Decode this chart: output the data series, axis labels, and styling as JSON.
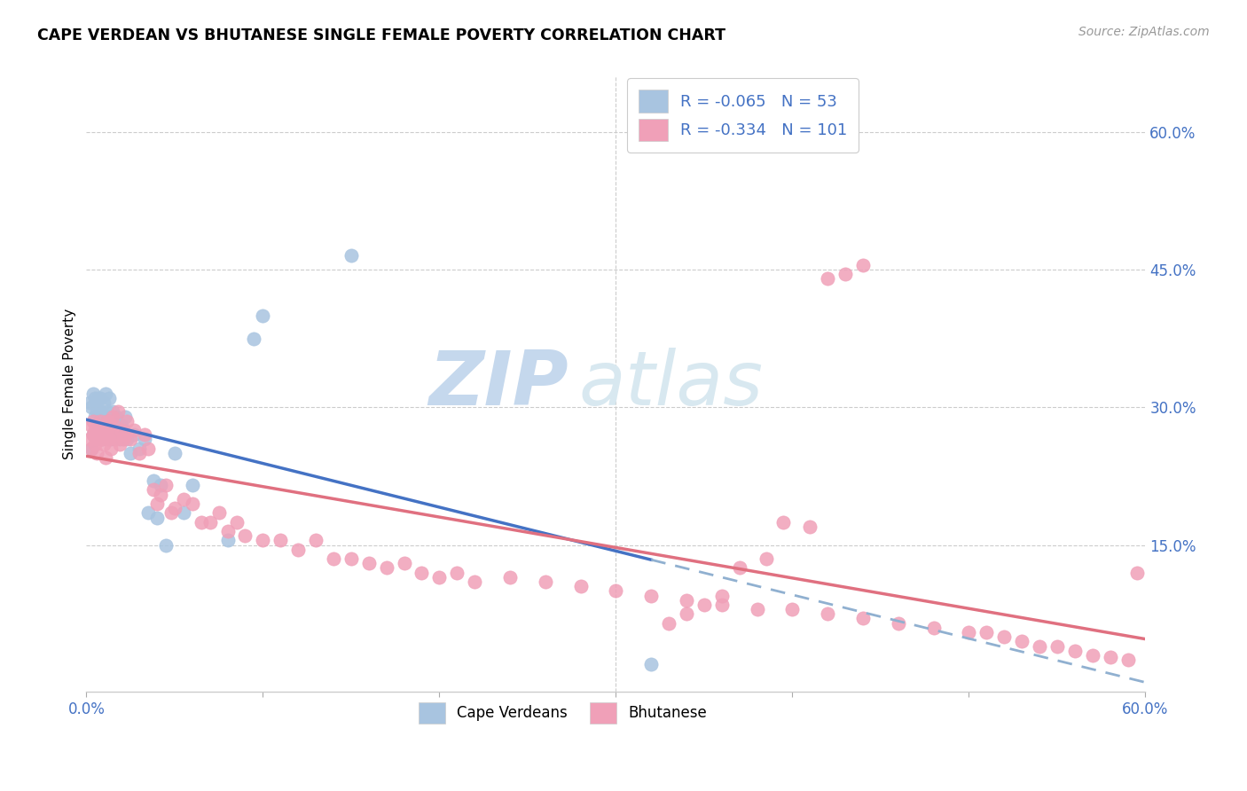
{
  "title": "CAPE VERDEAN VS BHUTANESE SINGLE FEMALE POVERTY CORRELATION CHART",
  "source": "Source: ZipAtlas.com",
  "ylabel": "Single Female Poverty",
  "ytick_labels": [
    "15.0%",
    "30.0%",
    "45.0%",
    "60.0%"
  ],
  "ytick_values": [
    0.15,
    0.3,
    0.45,
    0.6
  ],
  "xlim": [
    0.0,
    0.6
  ],
  "ylim": [
    -0.01,
    0.66
  ],
  "legend_cv": {
    "R": -0.065,
    "N": 53
  },
  "legend_bh": {
    "R": -0.334,
    "N": 101
  },
  "cape_verdean_color": "#a8c4e0",
  "bhutanese_color": "#f0a0b8",
  "trendline_cv_color": "#4472c4",
  "trendline_bh_color": "#e07080",
  "trendline_cv_dashed_color": "#90b0d0",
  "watermark_zip_color": "#c5d8ed",
  "watermark_atlas_color": "#d8e8f0",
  "cv_x": [
    0.002,
    0.003,
    0.003,
    0.004,
    0.004,
    0.005,
    0.005,
    0.005,
    0.006,
    0.006,
    0.007,
    0.007,
    0.008,
    0.008,
    0.008,
    0.009,
    0.009,
    0.01,
    0.01,
    0.011,
    0.011,
    0.012,
    0.012,
    0.013,
    0.013,
    0.014,
    0.015,
    0.015,
    0.016,
    0.017,
    0.018,
    0.019,
    0.02,
    0.021,
    0.022,
    0.023,
    0.025,
    0.027,
    0.03,
    0.033,
    0.035,
    0.038,
    0.04,
    0.042,
    0.045,
    0.05,
    0.055,
    0.06,
    0.08,
    0.095,
    0.1,
    0.15,
    0.32
  ],
  "cv_y": [
    0.305,
    0.3,
    0.255,
    0.315,
    0.27,
    0.29,
    0.31,
    0.27,
    0.295,
    0.305,
    0.285,
    0.31,
    0.275,
    0.31,
    0.295,
    0.285,
    0.265,
    0.305,
    0.285,
    0.29,
    0.315,
    0.27,
    0.295,
    0.285,
    0.31,
    0.265,
    0.295,
    0.28,
    0.285,
    0.29,
    0.275,
    0.265,
    0.28,
    0.275,
    0.29,
    0.265,
    0.25,
    0.27,
    0.255,
    0.265,
    0.185,
    0.22,
    0.18,
    0.215,
    0.15,
    0.25,
    0.185,
    0.215,
    0.155,
    0.375,
    0.4,
    0.465,
    0.02
  ],
  "bh_x": [
    0.002,
    0.003,
    0.003,
    0.004,
    0.004,
    0.005,
    0.005,
    0.006,
    0.006,
    0.007,
    0.007,
    0.008,
    0.008,
    0.009,
    0.009,
    0.01,
    0.01,
    0.011,
    0.011,
    0.012,
    0.012,
    0.013,
    0.013,
    0.014,
    0.015,
    0.015,
    0.016,
    0.017,
    0.018,
    0.019,
    0.02,
    0.021,
    0.022,
    0.023,
    0.025,
    0.027,
    0.03,
    0.033,
    0.035,
    0.038,
    0.04,
    0.042,
    0.045,
    0.048,
    0.05,
    0.055,
    0.06,
    0.065,
    0.07,
    0.075,
    0.08,
    0.085,
    0.09,
    0.1,
    0.11,
    0.12,
    0.13,
    0.14,
    0.15,
    0.16,
    0.17,
    0.18,
    0.19,
    0.2,
    0.21,
    0.22,
    0.24,
    0.26,
    0.28,
    0.3,
    0.32,
    0.34,
    0.36,
    0.38,
    0.4,
    0.42,
    0.44,
    0.46,
    0.48,
    0.5,
    0.51,
    0.52,
    0.53,
    0.54,
    0.55,
    0.56,
    0.57,
    0.58,
    0.59,
    0.595,
    0.42,
    0.43,
    0.44,
    0.41,
    0.395,
    0.385,
    0.37,
    0.36,
    0.35,
    0.34,
    0.33
  ],
  "bh_y": [
    0.265,
    0.255,
    0.28,
    0.27,
    0.285,
    0.26,
    0.275,
    0.265,
    0.25,
    0.275,
    0.28,
    0.265,
    0.285,
    0.275,
    0.265,
    0.26,
    0.28,
    0.275,
    0.245,
    0.285,
    0.27,
    0.265,
    0.285,
    0.255,
    0.27,
    0.29,
    0.28,
    0.265,
    0.295,
    0.26,
    0.275,
    0.265,
    0.27,
    0.285,
    0.265,
    0.275,
    0.25,
    0.27,
    0.255,
    0.21,
    0.195,
    0.205,
    0.215,
    0.185,
    0.19,
    0.2,
    0.195,
    0.175,
    0.175,
    0.185,
    0.165,
    0.175,
    0.16,
    0.155,
    0.155,
    0.145,
    0.155,
    0.135,
    0.135,
    0.13,
    0.125,
    0.13,
    0.12,
    0.115,
    0.12,
    0.11,
    0.115,
    0.11,
    0.105,
    0.1,
    0.095,
    0.09,
    0.085,
    0.08,
    0.08,
    0.075,
    0.07,
    0.065,
    0.06,
    0.055,
    0.055,
    0.05,
    0.045,
    0.04,
    0.04,
    0.035,
    0.03,
    0.028,
    0.025,
    0.12,
    0.44,
    0.445,
    0.455,
    0.17,
    0.175,
    0.135,
    0.125,
    0.095,
    0.085,
    0.075,
    0.065
  ]
}
